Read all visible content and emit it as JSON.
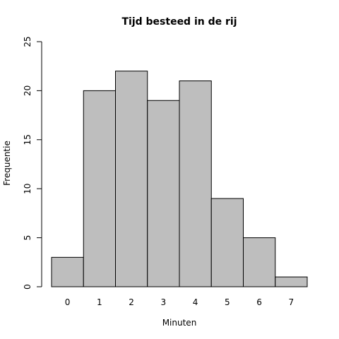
{
  "chart_data": {
    "type": "bar",
    "title": "Tijd besteed in de rij",
    "xlabel": "Minuten",
    "ylabel": "Frequentie",
    "categories": [
      "0",
      "1",
      "2",
      "3",
      "4",
      "5",
      "6",
      "7"
    ],
    "values": [
      3,
      20,
      22,
      19,
      21,
      9,
      5,
      1
    ],
    "ylim": [
      0,
      25
    ],
    "yticks": [
      "0",
      "5",
      "10",
      "15",
      "20",
      "25"
    ],
    "grid": false,
    "colors": {
      "bar_fill": "#bebebe",
      "bar_stroke": "#000000"
    }
  }
}
